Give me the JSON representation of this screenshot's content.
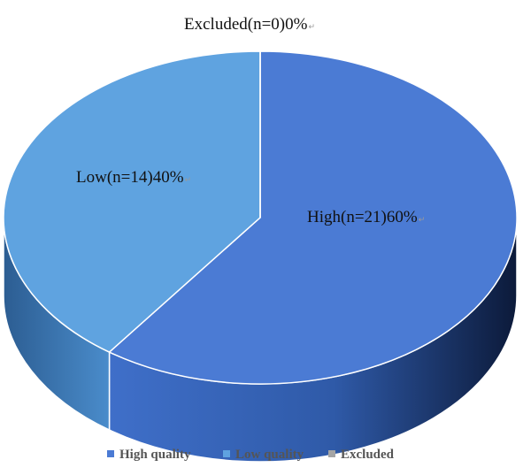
{
  "chart_data": {
    "type": "pie",
    "style": "3d",
    "title": "",
    "slices": [
      {
        "name": "High quality",
        "value": 21,
        "percent": 60,
        "label": "High(n=21)60%",
        "color": "#4B7BD4",
        "side_color": "#2F5AA8"
      },
      {
        "name": "Low quality",
        "value": 14,
        "percent": 40,
        "label": "Low(n=14)40%",
        "color": "#5FA3E0",
        "side_color": "#3C78B2"
      },
      {
        "name": "Excluded",
        "value": 0,
        "percent": 0,
        "label": "Excluded(n=0)0%",
        "color": "#A5A5A5",
        "side_color": "#808080"
      }
    ],
    "legend": {
      "position": "bottom",
      "entries": [
        "High quality",
        "Low quality",
        "Excluded"
      ]
    },
    "label_trailing_mark": "↵"
  }
}
